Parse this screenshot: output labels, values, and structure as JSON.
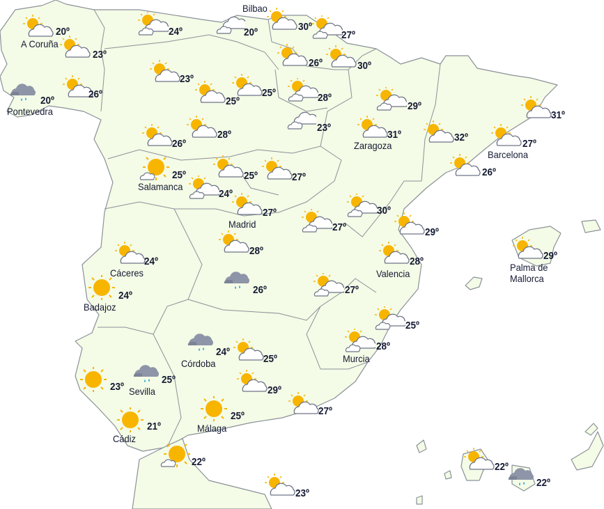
{
  "map": {
    "land_color": "#f4fbe6",
    "border_color": "#8a9199",
    "sun_color": "#f7b500",
    "rain_cloud_color": "#8e95a8",
    "rain_drop_color": "#29a8e0"
  },
  "stations": [
    {
      "city": "A Coruña",
      "temp": "20º",
      "icon": "partly-cloudy"
    },
    {
      "city": "",
      "temp": "23º",
      "icon": "partly-cloudy"
    },
    {
      "city": "Pontevedra",
      "temp": "20º",
      "icon": "rain"
    },
    {
      "city": "",
      "temp": "26º",
      "icon": "partly-cloudy"
    },
    {
      "city": "",
      "temp": "24º",
      "icon": "sun-two-clouds"
    },
    {
      "city": "Bilbao",
      "temp": "20º",
      "icon": "cloudy"
    },
    {
      "city": "",
      "temp": "30º",
      "icon": "partly-cloudy"
    },
    {
      "city": "",
      "temp": "27º",
      "icon": "sun-two-clouds"
    },
    {
      "city": "",
      "temp": "26º",
      "icon": "partly-cloudy"
    },
    {
      "city": "",
      "temp": "30º",
      "icon": "partly-cloudy"
    },
    {
      "city": "",
      "temp": "23º",
      "icon": "partly-cloudy"
    },
    {
      "city": "",
      "temp": "25º",
      "icon": "partly-cloudy"
    },
    {
      "city": "",
      "temp": "25º",
      "icon": "partly-cloudy"
    },
    {
      "city": "",
      "temp": "28º",
      "icon": "sun-two-clouds"
    },
    {
      "city": "",
      "temp": "23º",
      "icon": "cloudy"
    },
    {
      "city": "",
      "temp": "29º",
      "icon": "sun-two-clouds"
    },
    {
      "city": "Zaragoza",
      "temp": "31º",
      "icon": "partly-cloudy"
    },
    {
      "city": "",
      "temp": "32º",
      "icon": "partly-cloudy"
    },
    {
      "city": "",
      "temp": "31º",
      "icon": "partly-cloudy"
    },
    {
      "city": "Barcelona",
      "temp": "27º",
      "icon": "partly-cloudy"
    },
    {
      "city": "",
      "temp": "26º",
      "icon": "partly-cloudy"
    },
    {
      "city": "",
      "temp": "26º",
      "icon": "partly-cloudy"
    },
    {
      "city": "",
      "temp": "28º",
      "icon": "partly-cloudy"
    },
    {
      "city": "Salamanca",
      "temp": "25º",
      "icon": "sun-small-cloud"
    },
    {
      "city": "",
      "temp": "24º",
      "icon": "sun-two-clouds"
    },
    {
      "city": "",
      "temp": "25º",
      "icon": "partly-cloudy"
    },
    {
      "city": "",
      "temp": "27º",
      "icon": "partly-cloudy"
    },
    {
      "city": "Madrid",
      "temp": "27º",
      "icon": "partly-cloudy"
    },
    {
      "city": "",
      "temp": "27º",
      "icon": "sun-two-clouds"
    },
    {
      "city": "",
      "temp": "30º",
      "icon": "sun-two-clouds"
    },
    {
      "city": "",
      "temp": "29º",
      "icon": "partly-cloudy"
    },
    {
      "city": "Cáceres",
      "temp": "24º",
      "icon": "partly-cloudy"
    },
    {
      "city": "",
      "temp": "28º",
      "icon": "partly-cloudy"
    },
    {
      "city": "",
      "temp": "26º",
      "icon": "rain"
    },
    {
      "city": "Valencia",
      "temp": "28º",
      "icon": "partly-cloudy"
    },
    {
      "city": "",
      "temp": "27º",
      "icon": "sun-two-clouds"
    },
    {
      "city": "Badajoz",
      "temp": "24º",
      "icon": "sun"
    },
    {
      "city": "Palma de\nMallorca",
      "temp": "29º",
      "icon": "partly-cloudy"
    },
    {
      "city": "",
      "temp": "25º",
      "icon": "sun-two-clouds"
    },
    {
      "city": "Murcia",
      "temp": "28º",
      "icon": "sun-two-clouds"
    },
    {
      "city": "Córdoba",
      "temp": "24º",
      "icon": "rain"
    },
    {
      "city": "",
      "temp": "25º",
      "icon": "partly-cloudy"
    },
    {
      "city": "Sevilla",
      "temp": "25º",
      "icon": "rain"
    },
    {
      "city": "",
      "temp": "23º",
      "icon": "sun"
    },
    {
      "city": "",
      "temp": "29º",
      "icon": "partly-cloudy"
    },
    {
      "city": "",
      "temp": "27º",
      "icon": "partly-cloudy"
    },
    {
      "city": "Málaga",
      "temp": "25º",
      "icon": "sun"
    },
    {
      "city": "Cádiz",
      "temp": "21º",
      "icon": "sun"
    },
    {
      "city": "",
      "temp": "22º",
      "icon": "sun-small-cloud"
    },
    {
      "city": "",
      "temp": "23º",
      "icon": "partly-cloudy"
    },
    {
      "city": "",
      "temp": "22º",
      "icon": "partly-cloudy"
    },
    {
      "city": "",
      "temp": "22º",
      "icon": "rain"
    }
  ]
}
